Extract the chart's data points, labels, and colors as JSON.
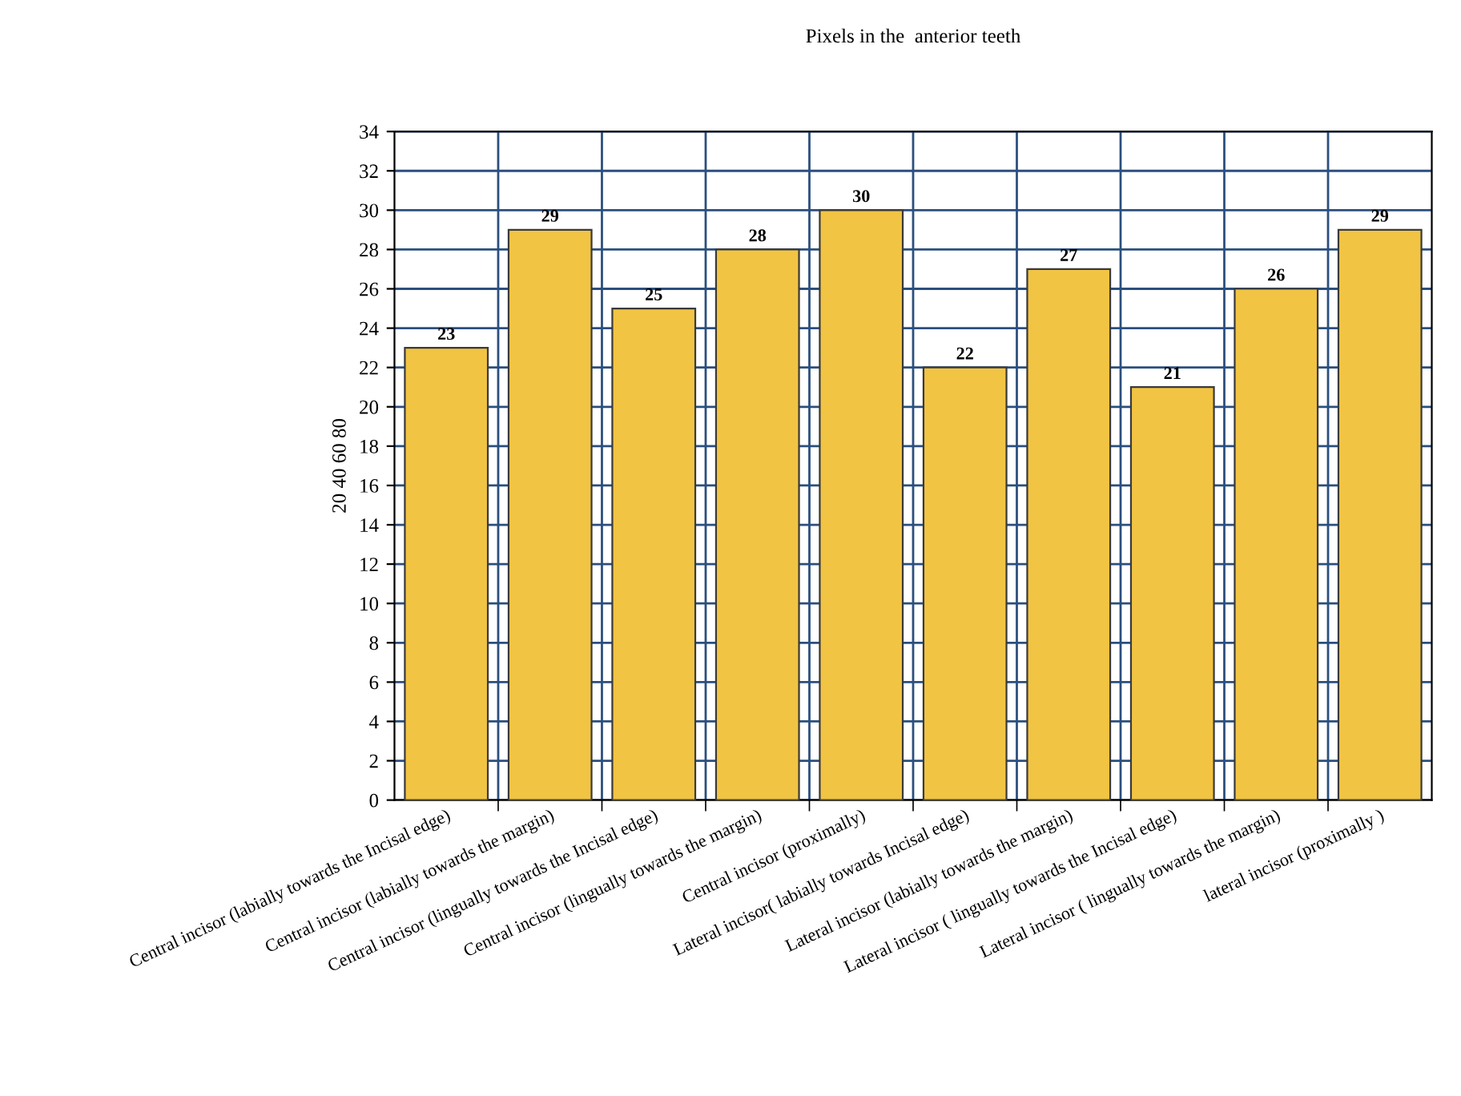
{
  "chart_data": {
    "type": "bar",
    "title": "Pixels in the  anterior teeth",
    "ylabel": "20 40 60 80",
    "categories": [
      "Central incisor (labially towards the Incisal edge)",
      "Central incisor (labially towards the margin)",
      "Central incisor (lingually towards the Incisal edge)",
      "Central incisor (lingually towards the margin)",
      "Central incisor (proximally)",
      "Lateral incisor( labially towards Incisal edge)",
      "Lateral incisor (labially towards the margin)",
      "Lateral incisor ( lingually towards the Incisal edge)",
      "Lateral incisor ( lingually towards the margin)",
      "lateral incisor (proximally )"
    ],
    "values": [
      23,
      29,
      25,
      28,
      30,
      22,
      27,
      21,
      26,
      29
    ],
    "color": "#f2c443",
    "ylim": [
      0,
      34
    ],
    "yticks": [
      0,
      2,
      4,
      6,
      8,
      10,
      12,
      14,
      16,
      18,
      20,
      22,
      24,
      26,
      28,
      30,
      32,
      34
    ],
    "grid": true,
    "data_labels": true
  }
}
